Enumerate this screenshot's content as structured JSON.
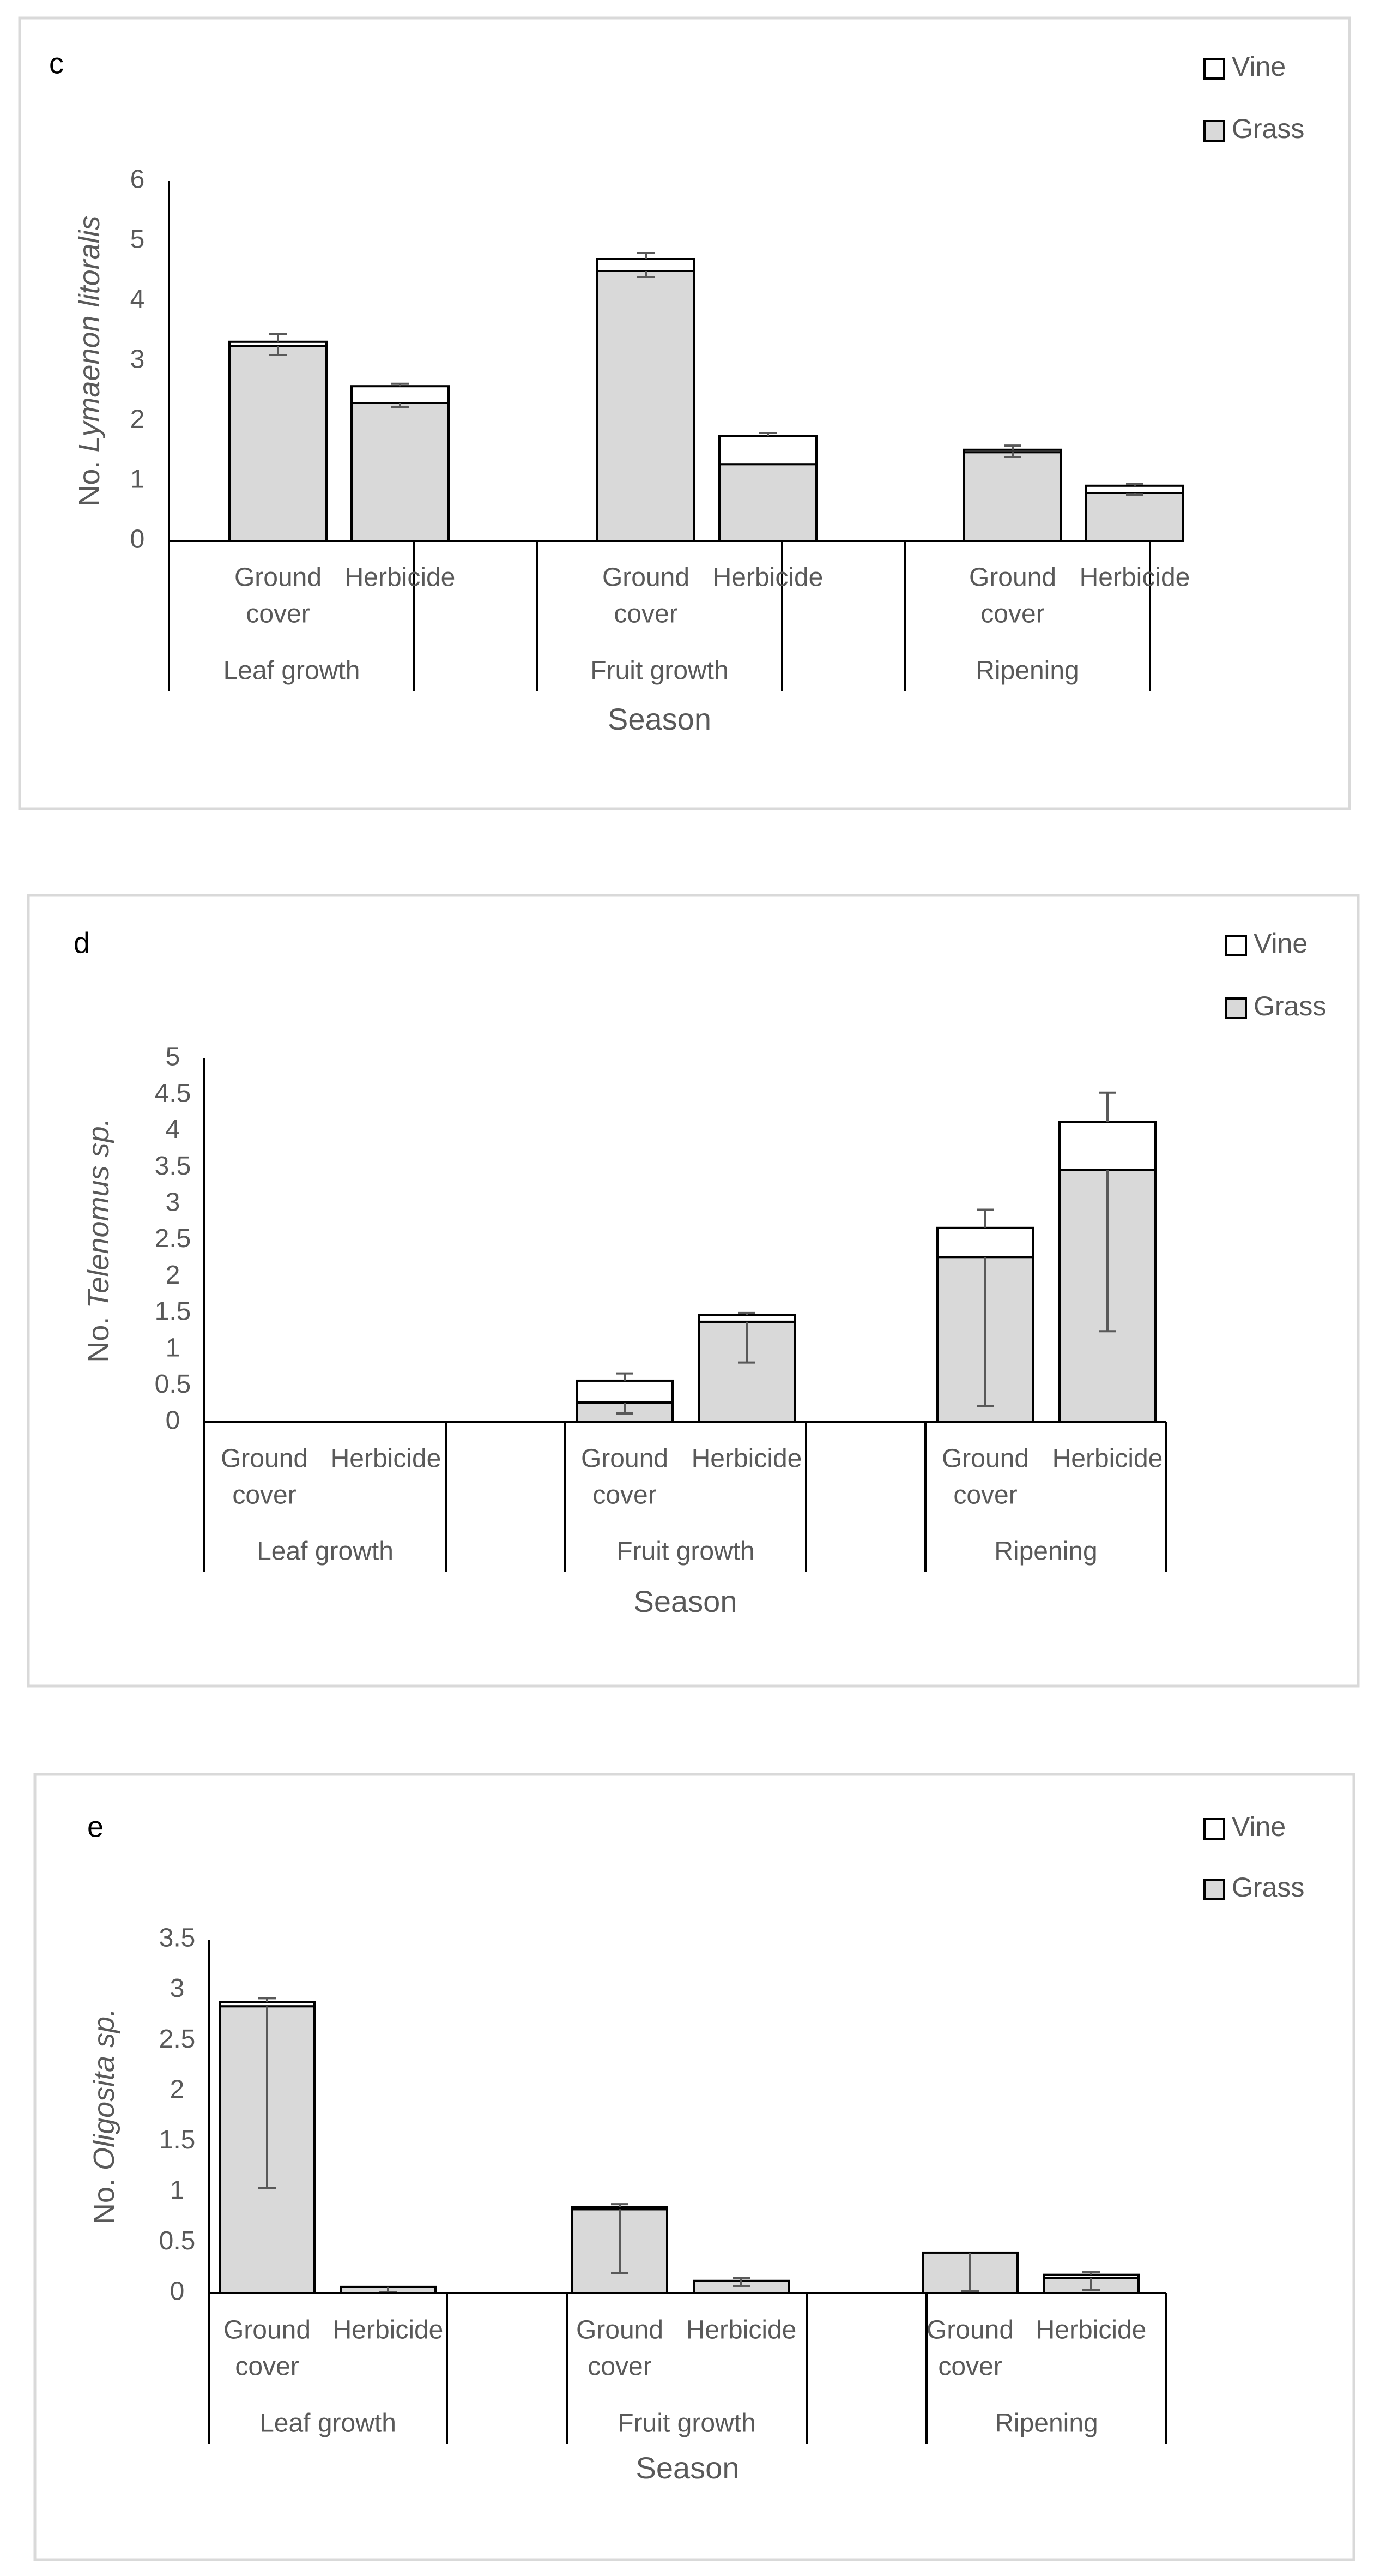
{
  "colors": {
    "grass": "#d9d9d9",
    "vine": "#ffffff",
    "stroke": "#000000",
    "frame": "#d9d9d9",
    "text": "#595959",
    "errorbar": "#595959"
  },
  "chart_data": [
    {
      "type": "bar",
      "stacked": true,
      "panel_label": "c",
      "ylabel_prefix": "No. ",
      "ylabel_species": "Lymaenon litoralis",
      "xlabel": "Season",
      "ylim": [
        0,
        6
      ],
      "yticks": [
        "0",
        "1",
        "2",
        "3",
        "4",
        "5",
        "6"
      ],
      "groups": [
        "Leaf growth",
        "Fruit growth",
        "Ripening"
      ],
      "category_labels": [
        [
          "Ground",
          "cover"
        ],
        [
          "Herbicide"
        ]
      ],
      "legend": [
        "Vine",
        "Grass"
      ],
      "series": [
        {
          "name": "Grass",
          "values": [
            3.25,
            2.3,
            4.5,
            1.28,
            1.48,
            0.8
          ],
          "error_low": [
            0.15,
            0.07,
            0.1,
            0.0,
            0.08,
            0.03
          ]
        },
        {
          "name": "Vine",
          "values": [
            0.07,
            0.28,
            0.2,
            0.47,
            0.04,
            0.12
          ],
          "error_high": [
            0.13,
            0.04,
            0.1,
            0.05,
            0.07,
            0.03
          ]
        }
      ]
    },
    {
      "type": "bar",
      "stacked": true,
      "panel_label": "d",
      "ylabel_prefix": "No. ",
      "ylabel_species": "Telenomus sp.",
      "xlabel": "Season",
      "ylim": [
        0,
        5
      ],
      "yticks": [
        "0",
        "0.5",
        "1",
        "1.5",
        "2",
        "2.5",
        "3",
        "3.5",
        "4",
        "4.5",
        "5"
      ],
      "groups": [
        "Leaf growth",
        "Fruit growth",
        "Ripening"
      ],
      "category_labels": [
        [
          "Ground",
          "cover"
        ],
        [
          "Herbicide"
        ]
      ],
      "legend": [
        "Vine",
        "Grass"
      ],
      "series": [
        {
          "name": "Grass",
          "values": [
            0,
            0,
            0.27,
            1.38,
            2.27,
            3.47
          ],
          "error_low": [
            0,
            0,
            0.15,
            0.56,
            2.05,
            2.22
          ]
        },
        {
          "name": "Vine",
          "values": [
            0,
            0,
            0.3,
            0.09,
            0.4,
            0.66
          ],
          "error_high": [
            0,
            0,
            0.1,
            0.03,
            0.25,
            0.4
          ]
        }
      ]
    },
    {
      "type": "bar",
      "stacked": true,
      "panel_label": "e",
      "ylabel_prefix": "No. ",
      "ylabel_species": "Oligosita sp.",
      "xlabel": "Season",
      "ylim": [
        0,
        3.5
      ],
      "yticks": [
        "0",
        "0.5",
        "1",
        "1.5",
        "2",
        "2.5",
        "3",
        "3.5"
      ],
      "groups": [
        "Leaf growth",
        "Fruit growth",
        "Ripening"
      ],
      "category_labels": [
        [
          "Ground",
          "cover"
        ],
        [
          "Herbicide"
        ]
      ],
      "legend": [
        "Vine",
        "Grass"
      ],
      "series": [
        {
          "name": "Grass",
          "values": [
            2.84,
            0.06,
            0.83,
            0.12,
            0.4,
            0.15
          ],
          "error_low": [
            1.8,
            0.05,
            0.63,
            0.05,
            0.38,
            0.12
          ]
        },
        {
          "name": "Vine",
          "values": [
            0.04,
            0.0,
            0.02,
            0.0,
            0.0,
            0.03
          ],
          "error_high": [
            0.04,
            0.0,
            0.03,
            0.03,
            0.0,
            0.03
          ]
        }
      ]
    }
  ]
}
